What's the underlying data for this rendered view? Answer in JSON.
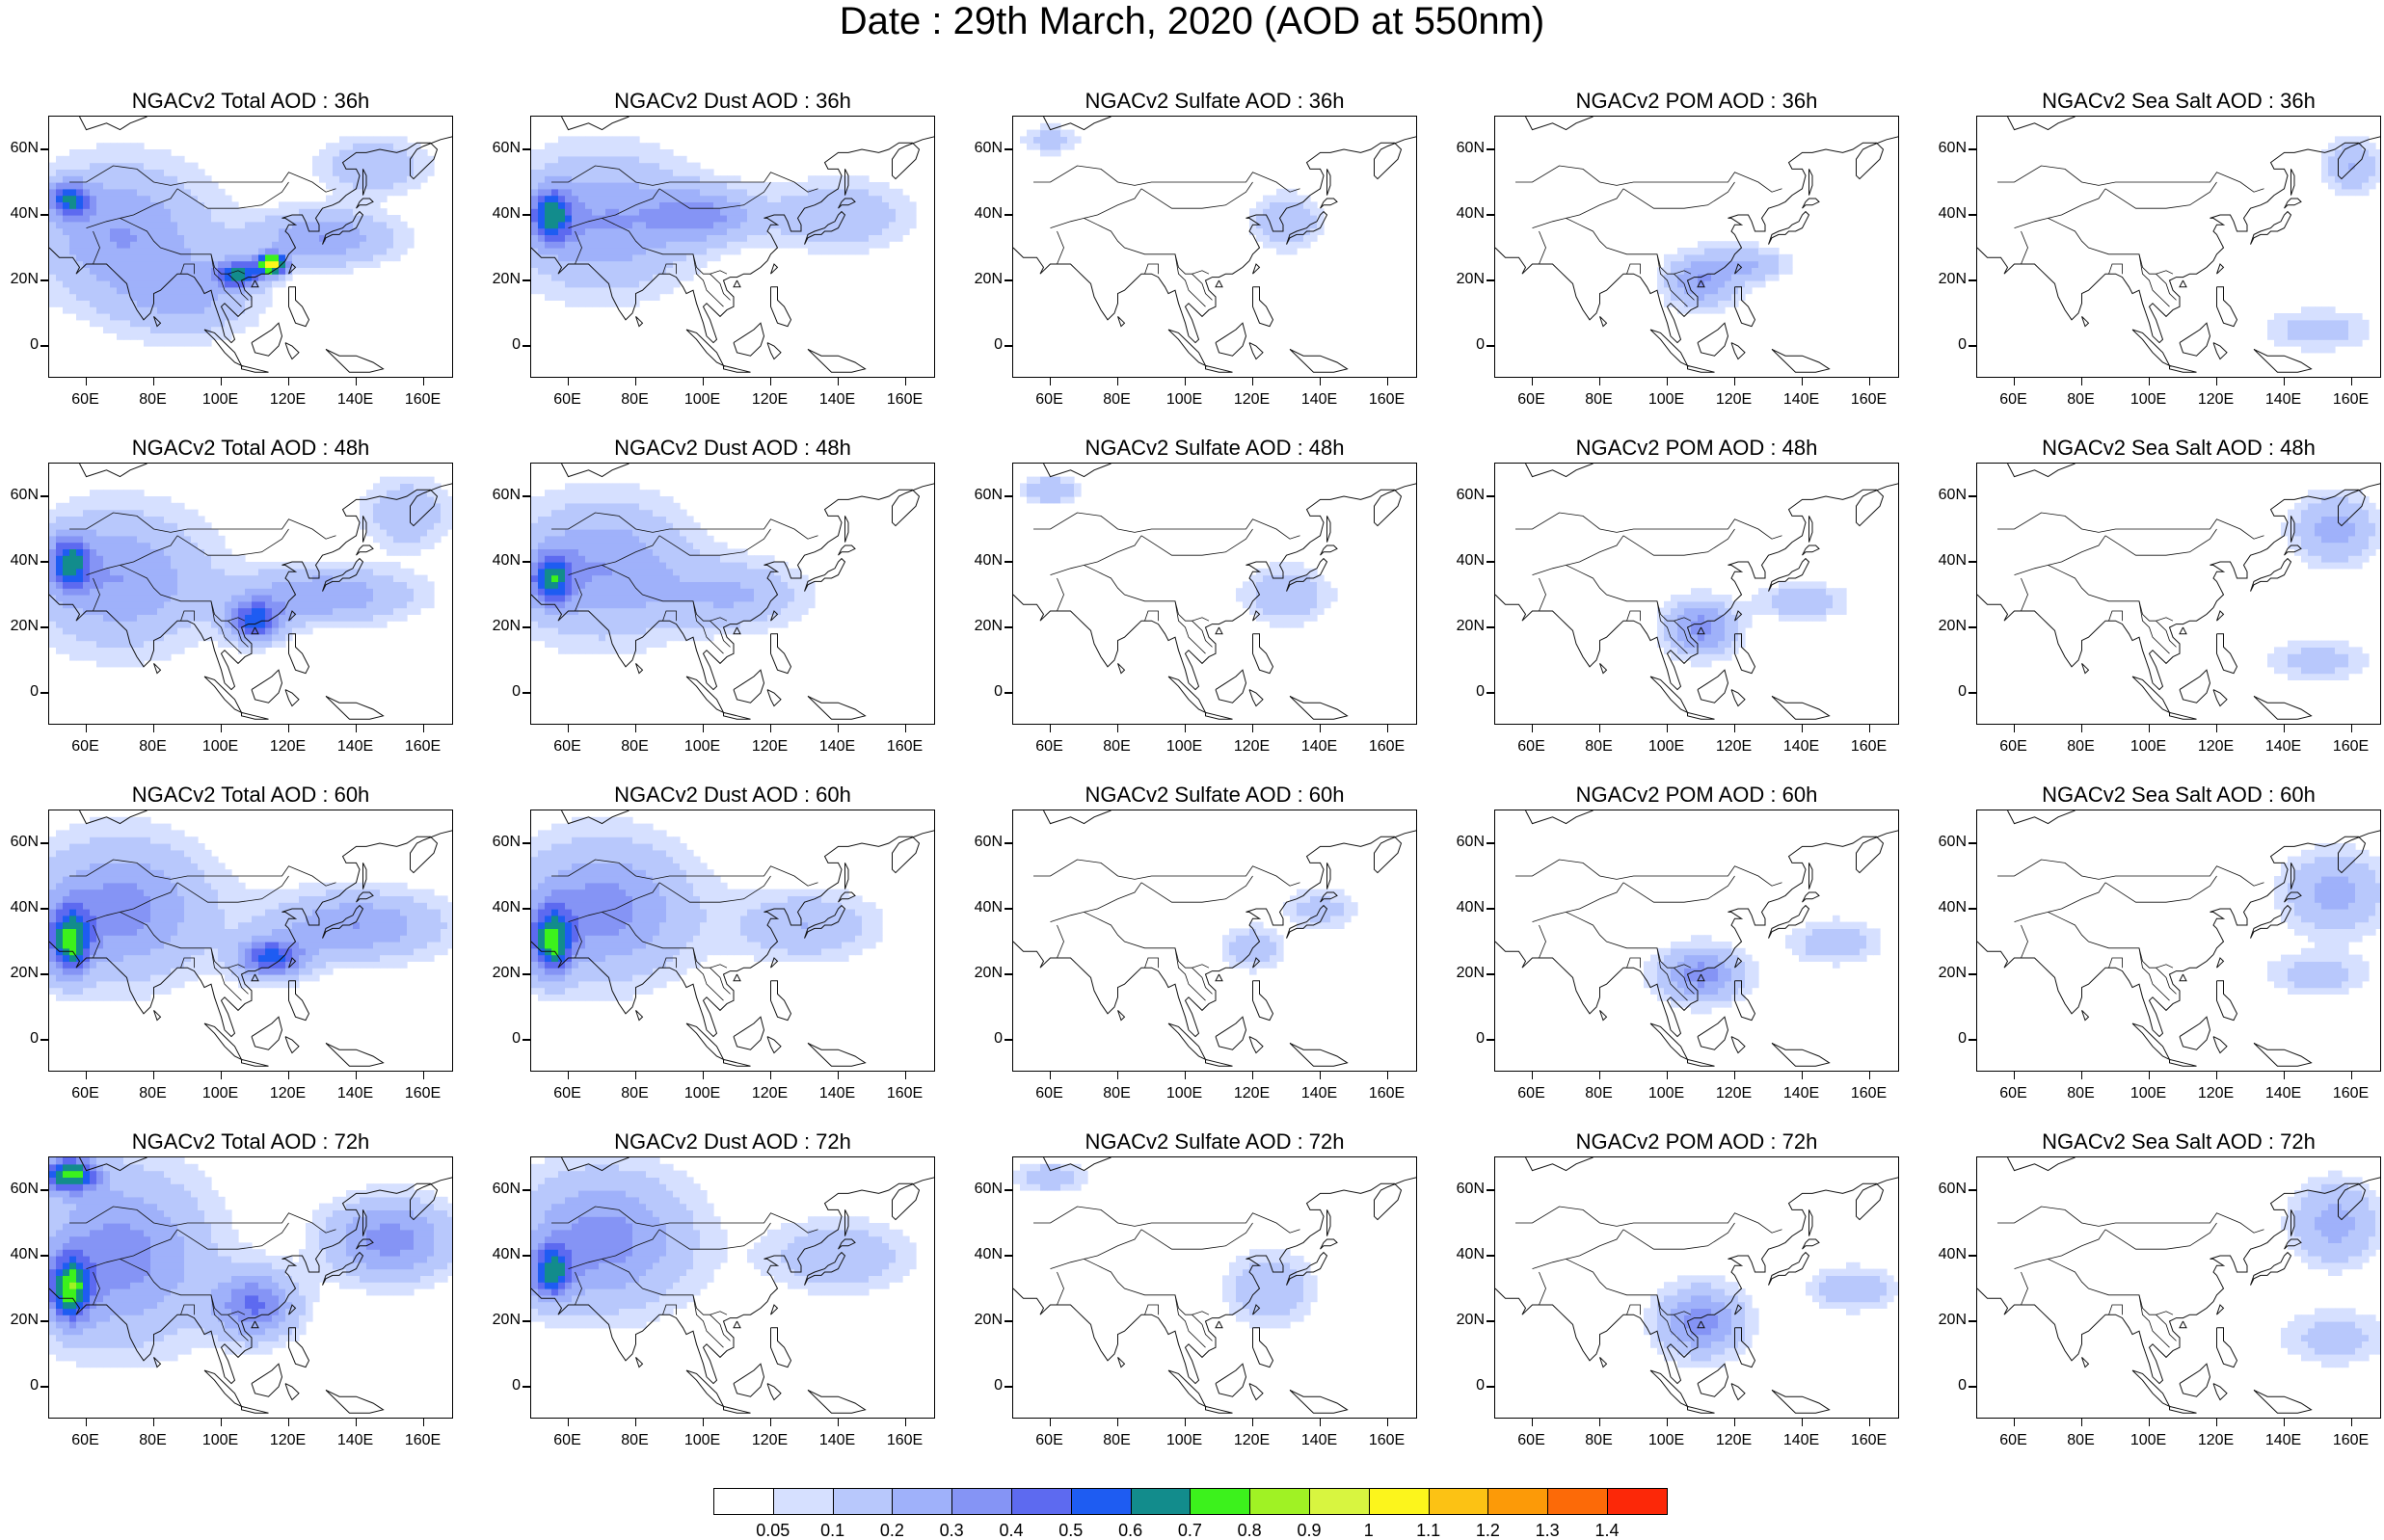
{
  "title": "Date : 29th March, 2020 (AOD at 550nm)",
  "axes": {
    "x_ticks": [
      "60E",
      "80E",
      "100E",
      "120E",
      "140E",
      "160E"
    ],
    "x_values": [
      60,
      80,
      100,
      120,
      140,
      160
    ],
    "y_ticks": [
      "60N",
      "40N",
      "20N",
      "0"
    ],
    "y_values": [
      60,
      40,
      20,
      0
    ],
    "lon_range": [
      49,
      169
    ],
    "lat_range": [
      -10,
      70
    ]
  },
  "species": [
    "Total",
    "Dust",
    "Sulfate",
    "POM",
    "Sea Salt"
  ],
  "forecast_hours": [
    "36h",
    "48h",
    "60h",
    "72h"
  ],
  "panel_titles": [
    [
      "NGACv2 Total AOD : 36h",
      "NGACv2 Dust AOD : 36h",
      "NGACv2 Sulfate AOD : 36h",
      "NGACv2 POM AOD : 36h",
      "NGACv2 Sea Salt AOD : 36h"
    ],
    [
      "NGACv2 Total AOD : 48h",
      "NGACv2 Dust AOD : 48h",
      "NGACv2 Sulfate AOD : 48h",
      "NGACv2 POM AOD : 48h",
      "NGACv2 Sea Salt AOD : 48h"
    ],
    [
      "NGACv2 Total AOD : 60h",
      "NGACv2 Dust AOD : 60h",
      "NGACv2 Sulfate AOD : 60h",
      "NGACv2 POM AOD : 60h",
      "NGACv2 Sea Salt AOD : 60h"
    ],
    [
      "NGACv2 Total AOD : 72h",
      "NGACv2 Dust AOD : 72h",
      "NGACv2 Sulfate AOD : 72h",
      "NGACv2 POM AOD : 72h",
      "NGACv2 Sea Salt  AOD : 72h"
    ]
  ],
  "legend": {
    "labels": [
      "0.05",
      "0.1",
      "0.2",
      "0.3",
      "0.4",
      "0.5",
      "0.6",
      "0.7",
      "0.8",
      "0.9",
      "1",
      "1.1",
      "1.2",
      "1.3",
      "1.4"
    ],
    "colors": [
      "#ffffff",
      "#d6e0ff",
      "#b8c8fc",
      "#9fb1fa",
      "#8594f5",
      "#5d6af0",
      "#1e5cf2",
      "#128c8c",
      "#3cf21c",
      "#a0f224",
      "#d8f540",
      "#fcf51c",
      "#fcc214",
      "#fc9a08",
      "#fc6a08",
      "#fc2808"
    ]
  },
  "chart_data": {
    "type": "heatmap",
    "variable": "AOD at 550nm",
    "date": "29th March, 2020",
    "x_range": [
      49,
      169
    ],
    "y_range": [
      -10,
      70
    ],
    "panels": [
      {
        "species": "Total",
        "hour": "36h",
        "blobs": [
          [
            70,
            35,
            25,
            20,
            0.3
          ],
          [
            55,
            45,
            6,
            5,
            0.5
          ],
          [
            105,
            22,
            6,
            4,
            0.6
          ],
          [
            115,
            25,
            4,
            3,
            1.0
          ],
          [
            130,
            33,
            20,
            8,
            0.3
          ],
          [
            90,
            15,
            20,
            12,
            0.2
          ],
          [
            145,
            55,
            15,
            8,
            0.2
          ]
        ]
      },
      {
        "species": "Dust",
        "hour": "36h",
        "blobs": [
          [
            70,
            38,
            25,
            20,
            0.3
          ],
          [
            55,
            40,
            6,
            8,
            0.5
          ],
          [
            100,
            40,
            15,
            8,
            0.3
          ],
          [
            140,
            40,
            20,
            10,
            0.2
          ]
        ]
      },
      {
        "species": "Sulfate",
        "hour": "36h",
        "blobs": [
          [
            130,
            38,
            10,
            8,
            0.2
          ],
          [
            60,
            63,
            8,
            4,
            0.15
          ]
        ]
      },
      {
        "species": "POM",
        "hour": "36h",
        "blobs": [
          [
            110,
            20,
            10,
            8,
            0.3
          ],
          [
            125,
            25,
            10,
            5,
            0.2
          ]
        ]
      },
      {
        "species": "Sea Salt",
        "hour": "36h",
        "blobs": [
          [
            160,
            55,
            8,
            8,
            0.2
          ],
          [
            150,
            5,
            15,
            6,
            0.15
          ]
        ]
      },
      {
        "species": "Total",
        "hour": "48h",
        "blobs": [
          [
            70,
            35,
            25,
            20,
            0.3
          ],
          [
            55,
            40,
            6,
            8,
            0.5
          ],
          [
            110,
            22,
            8,
            6,
            0.5
          ],
          [
            130,
            30,
            25,
            8,
            0.3
          ],
          [
            155,
            55,
            12,
            10,
            0.2
          ]
        ]
      },
      {
        "species": "Dust",
        "hour": "48h",
        "blobs": [
          [
            70,
            38,
            25,
            20,
            0.3
          ],
          [
            55,
            35,
            6,
            8,
            0.5
          ],
          [
            110,
            30,
            20,
            10,
            0.2
          ]
        ]
      },
      {
        "species": "Sulfate",
        "hour": "48h",
        "blobs": [
          [
            130,
            30,
            12,
            8,
            0.2
          ],
          [
            60,
            62,
            8,
            4,
            0.2
          ]
        ]
      },
      {
        "species": "POM",
        "hour": "48h",
        "blobs": [
          [
            110,
            20,
            10,
            8,
            0.35
          ],
          [
            140,
            28,
            12,
            5,
            0.2
          ]
        ]
      },
      {
        "species": "Sea Salt",
        "hour": "48h",
        "blobs": [
          [
            155,
            50,
            12,
            10,
            0.25
          ],
          [
            150,
            10,
            15,
            6,
            0.15
          ]
        ]
      },
      {
        "species": "Total",
        "hour": "60h",
        "blobs": [
          [
            70,
            40,
            25,
            20,
            0.35
          ],
          [
            55,
            30,
            6,
            10,
            0.6
          ],
          [
            115,
            25,
            10,
            6,
            0.5
          ],
          [
            140,
            35,
            25,
            10,
            0.3
          ]
        ]
      },
      {
        "species": "Dust",
        "hour": "60h",
        "blobs": [
          [
            70,
            40,
            25,
            20,
            0.35
          ],
          [
            55,
            30,
            6,
            10,
            0.6
          ],
          [
            130,
            35,
            20,
            10,
            0.2
          ]
        ]
      },
      {
        "species": "Sulfate",
        "hour": "60h",
        "blobs": [
          [
            120,
            28,
            8,
            6,
            0.2
          ],
          [
            140,
            40,
            10,
            6,
            0.15
          ]
        ]
      },
      {
        "species": "POM",
        "hour": "60h",
        "blobs": [
          [
            110,
            20,
            12,
            8,
            0.35
          ],
          [
            150,
            30,
            12,
            6,
            0.2
          ]
        ]
      },
      {
        "species": "Sea Salt",
        "hour": "60h",
        "blobs": [
          [
            155,
            45,
            14,
            12,
            0.25
          ],
          [
            150,
            20,
            15,
            6,
            0.15
          ]
        ]
      },
      {
        "species": "Total",
        "hour": "72h",
        "blobs": [
          [
            70,
            40,
            25,
            25,
            0.35
          ],
          [
            55,
            30,
            6,
            10,
            0.6
          ],
          [
            110,
            25,
            12,
            10,
            0.4
          ],
          [
            150,
            45,
            18,
            12,
            0.35
          ],
          [
            55,
            65,
            8,
            5,
            0.7
          ]
        ]
      },
      {
        "species": "Dust",
        "hour": "72h",
        "blobs": [
          [
            70,
            45,
            25,
            20,
            0.35
          ],
          [
            55,
            35,
            6,
            8,
            0.5
          ],
          [
            140,
            40,
            20,
            10,
            0.2
          ]
        ]
      },
      {
        "species": "Sulfate",
        "hour": "72h",
        "blobs": [
          [
            125,
            30,
            12,
            10,
            0.2
          ],
          [
            60,
            64,
            10,
            4,
            0.2
          ]
        ]
      },
      {
        "species": "POM",
        "hour": "72h",
        "blobs": [
          [
            110,
            20,
            12,
            10,
            0.35
          ],
          [
            155,
            30,
            12,
            6,
            0.2
          ]
        ]
      },
      {
        "species": "Sea Salt",
        "hour": "72h",
        "blobs": [
          [
            155,
            50,
            12,
            12,
            0.25
          ],
          [
            155,
            15,
            15,
            8,
            0.15
          ]
        ]
      }
    ]
  }
}
